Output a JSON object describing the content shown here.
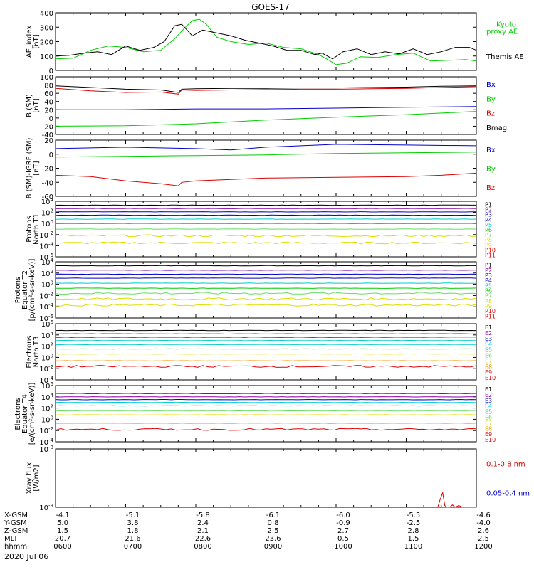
{
  "title": "GOES-17",
  "footer": {
    "rows": [
      {
        "label": "X-GSM",
        "values": [
          "-4.1",
          "-5.1",
          "-5.8",
          "-6.1",
          "-6.0",
          "-5.5",
          "-4.6"
        ]
      },
      {
        "label": "Y-GSM",
        "values": [
          "5.0",
          "3.8",
          "2.4",
          "0.8",
          "-0.9",
          "-2.5",
          "-4.0"
        ]
      },
      {
        "label": "Z-GSM",
        "values": [
          "1.5",
          "1.8",
          "2.1",
          "2.5",
          "2.7",
          "2.8",
          "2.6"
        ]
      },
      {
        "label": "MLT",
        "values": [
          "20.7",
          "21.6",
          "22.6",
          "23.6",
          "0.5",
          "1.5",
          "2.5"
        ]
      },
      {
        "label": "hhmm",
        "values": [
          "0600",
          "0700",
          "0800",
          "0900",
          "1000",
          "1100",
          "1200"
        ]
      }
    ],
    "date": "2020 Jul 06"
  },
  "colors": {
    "black": "#000000",
    "red": "#dd0000",
    "green": "#00cc00",
    "blue": "#0000cc",
    "purple": "#8800aa",
    "cyan": "#00cccc",
    "ltgreen": "#66dd66",
    "yellow": "#dddd00",
    "orange": "#ee9900"
  },
  "chart_data": [
    {
      "id": "ae",
      "type": "line",
      "ylabel": "AE_index\n[nT]",
      "ylim": [
        0,
        400
      ],
      "yticks": [
        0,
        100,
        200,
        300,
        400
      ],
      "ytick_labels": [
        "0",
        "100",
        "200",
        "300",
        "400"
      ],
      "x_hours": [
        6,
        12
      ],
      "legend": [
        {
          "text": "Kyoto\nproxy AE",
          "color": "#00cc00"
        },
        {
          "text": "Themis AE",
          "color": "#000000"
        }
      ],
      "series": [
        {
          "name": "Kyoto proxy AE",
          "color": "#00cc00",
          "x": [
            6.0,
            6.25,
            6.5,
            6.75,
            7.0,
            7.25,
            7.5,
            7.7,
            7.85,
            7.95,
            8.05,
            8.15,
            8.3,
            8.5,
            8.75,
            9.0,
            9.25,
            9.5,
            9.75,
            9.9,
            10.0,
            10.15,
            10.35,
            10.6,
            10.85,
            11.1,
            11.35,
            11.6,
            11.85,
            12.0
          ],
          "y": [
            80,
            85,
            140,
            170,
            160,
            130,
            140,
            220,
            300,
            345,
            355,
            320,
            230,
            200,
            180,
            190,
            160,
            150,
            110,
            70,
            40,
            50,
            95,
            90,
            110,
            120,
            65,
            70,
            75,
            65
          ]
        },
        {
          "name": "Themis AE",
          "color": "#000000",
          "x": [
            6.0,
            6.2,
            6.4,
            6.6,
            6.8,
            7.0,
            7.2,
            7.4,
            7.55,
            7.7,
            7.8,
            7.95,
            8.1,
            8.3,
            8.5,
            8.7,
            8.9,
            9.1,
            9.3,
            9.5,
            9.7,
            9.8,
            9.95,
            10.1,
            10.3,
            10.5,
            10.7,
            10.9,
            11.1,
            11.3,
            11.5,
            11.7,
            11.9,
            12.0
          ],
          "y": [
            100,
            105,
            120,
            130,
            110,
            170,
            140,
            160,
            200,
            310,
            320,
            240,
            280,
            260,
            240,
            210,
            190,
            170,
            140,
            140,
            110,
            120,
            80,
            130,
            150,
            110,
            130,
            115,
            150,
            110,
            130,
            160,
            160,
            140
          ]
        }
      ]
    },
    {
      "id": "bsm",
      "type": "line",
      "ylabel": "B (SM)\n[nT]",
      "ylim": [
        -40,
        100
      ],
      "yticks": [
        -40,
        -20,
        0,
        20,
        40,
        60,
        80,
        100
      ],
      "ytick_labels": [
        "-40",
        "-20",
        "0",
        "20",
        "40",
        "60",
        "80",
        "100"
      ],
      "x_hours": [
        6,
        12
      ],
      "legend": [
        {
          "text": "Bx",
          "color": "#0000cc"
        },
        {
          "text": "By",
          "color": "#00cc00"
        },
        {
          "text": "Bz",
          "color": "#dd0000"
        },
        {
          "text": "Bmag",
          "color": "#000000"
        }
      ],
      "series": [
        {
          "name": "Bmag",
          "color": "#000000",
          "x": [
            6,
            6.5,
            7,
            7.5,
            7.75,
            7.8,
            8,
            8.5,
            9,
            9.5,
            10,
            10.5,
            11,
            11.5,
            12
          ],
          "y": [
            78,
            74,
            70,
            68,
            62,
            70,
            71,
            72,
            72,
            73,
            73,
            74,
            75,
            77,
            78
          ]
        },
        {
          "name": "Bz",
          "color": "#dd0000",
          "x": [
            6,
            6.5,
            7,
            7.5,
            7.75,
            7.8,
            8,
            8.5,
            9,
            9.5,
            10,
            10.5,
            11,
            11.5,
            12
          ],
          "y": [
            72,
            66,
            62,
            63,
            58,
            68,
            67,
            68,
            69,
            70,
            70,
            71,
            72,
            74,
            76
          ]
        },
        {
          "name": "Bx",
          "color": "#0000cc",
          "x": [
            6,
            7,
            8,
            9,
            10,
            11,
            12
          ],
          "y": [
            20,
            20,
            22,
            22,
            24,
            26,
            28
          ]
        },
        {
          "name": "By",
          "color": "#00cc00",
          "x": [
            6,
            7,
            8,
            9,
            10,
            11,
            12
          ],
          "y": [
            -20,
            -19,
            -14,
            -5,
            2,
            8,
            16
          ]
        }
      ]
    },
    {
      "id": "bigrf",
      "type": "line",
      "ylabel": "B (SM)-IGRF (SM)\n[nT]",
      "ylim": [
        -60,
        20
      ],
      "yticks": [
        -60,
        -40,
        -20,
        0,
        20
      ],
      "ytick_labels": [
        "-60",
        "-40",
        "-20",
        "0",
        "20"
      ],
      "x_hours": [
        6,
        12
      ],
      "legend": [
        {
          "text": "Bx",
          "color": "#0000cc"
        },
        {
          "text": "By",
          "color": "#00cc00"
        },
        {
          "text": "Bz",
          "color": "#dd0000"
        }
      ],
      "series": [
        {
          "name": "Bx",
          "color": "#0000cc",
          "x": [
            6,
            7,
            8,
            8.5,
            9,
            10,
            11,
            12
          ],
          "y": [
            8,
            10,
            8,
            6,
            10,
            14,
            13,
            12
          ]
        },
        {
          "name": "By",
          "color": "#00cc00",
          "x": [
            6,
            7,
            8,
            9,
            10,
            11,
            12
          ],
          "y": [
            -4,
            -3,
            -2,
            -1,
            1,
            2,
            3
          ]
        },
        {
          "name": "Bz",
          "color": "#dd0000",
          "x": [
            6,
            6.5,
            7,
            7.5,
            7.75,
            7.8,
            8,
            8.5,
            9,
            10,
            11,
            11.5,
            12
          ],
          "y": [
            -30,
            -32,
            -38,
            -42,
            -45,
            -40,
            -38,
            -36,
            -34,
            -33,
            -32,
            -30,
            -27
          ]
        }
      ]
    },
    {
      "id": "pn",
      "type": "line",
      "log": true,
      "ylabel": "Protons\nNorth T1",
      "ylim": [
        -6,
        4
      ],
      "yticks": [
        4,
        2,
        0,
        -2,
        -4,
        -6
      ],
      "ytick_labels": [
        "10^4",
        "10^2",
        "10^0",
        "10^-2",
        "10^-4",
        "10^-6"
      ],
      "x_hours": [
        6,
        12
      ],
      "channels": [
        {
          "name": "P1",
          "color": "#000000",
          "level": 3.3
        },
        {
          "name": "P2",
          "color": "#8800aa",
          "level": 2.7
        },
        {
          "name": "P3",
          "color": "#0000cc",
          "level": 2.1
        },
        {
          "name": "P4",
          "color": "#0000cc",
          "level": 1.5
        },
        {
          "name": "P5",
          "color": "#00cccc",
          "level": 0.8
        },
        {
          "name": "P6",
          "color": "#00cc00",
          "level": 0.0
        },
        {
          "name": "P7",
          "color": "#66dd66",
          "level": -1.0
        },
        {
          "name": "P8",
          "color": "#dddd00",
          "level": -2.2
        },
        {
          "name": "P9",
          "color": "#dddd00",
          "level": -3.5
        },
        {
          "name": "P10",
          "color": "#dd0000",
          "level": null
        },
        {
          "name": "P11",
          "color": "#dd0000",
          "level": null
        }
      ]
    },
    {
      "id": "pe",
      "type": "line",
      "log": true,
      "ylabel": "Protons\nEquator T2\n[p/(cm²-s-sr-keV)]",
      "ylim": [
        -6,
        4
      ],
      "yticks": [
        4,
        2,
        0,
        -2,
        -4,
        -6
      ],
      "ytick_labels": [
        "10^4",
        "10^2",
        "10^0",
        "10^-2",
        "10^-4",
        "10^-6"
      ],
      "x_hours": [
        6,
        12
      ],
      "channels": [
        {
          "name": "P1",
          "color": "#000000",
          "level": 3.3
        },
        {
          "name": "P2",
          "color": "#8800aa",
          "level": 2.5
        },
        {
          "name": "P3",
          "color": "#0000cc",
          "level": 1.8
        },
        {
          "name": "P4",
          "color": "#0000cc",
          "level": 1.1
        },
        {
          "name": "P5",
          "color": "#00cccc",
          "level": 0.2
        },
        {
          "name": "P6",
          "color": "#00cc00",
          "level": -0.7
        },
        {
          "name": "P7",
          "color": "#66dd66",
          "level": -1.6
        },
        {
          "name": "P8",
          "color": "#dddd00",
          "level": -2.6
        },
        {
          "name": "P9",
          "color": "#dddd00",
          "level": -3.7
        },
        {
          "name": "P10",
          "color": "#dd0000",
          "level": null
        },
        {
          "name": "P11",
          "color": "#dd0000",
          "level": null
        }
      ]
    },
    {
      "id": "en",
      "type": "line",
      "log": true,
      "ylabel": "Electrons\nNorth T3",
      "ylim": [
        -4,
        6
      ],
      "yticks": [
        6,
        4,
        2,
        0,
        -2,
        -4
      ],
      "ytick_labels": [
        "10^6",
        "10^4",
        "10^2",
        "10^0",
        "10^-2",
        "10^-4"
      ],
      "x_hours": [
        6,
        12
      ],
      "channels": [
        {
          "name": "E1",
          "color": "#000000",
          "level": 4.8
        },
        {
          "name": "E2",
          "color": "#8800aa",
          "level": 4.2
        },
        {
          "name": "E3",
          "color": "#0000cc",
          "level": 3.6
        },
        {
          "name": "E4",
          "color": "#00cccc",
          "level": 3.0
        },
        {
          "name": "E5",
          "color": "#00cccc",
          "level": 2.3
        },
        {
          "name": "E6",
          "color": "#66dd66",
          "level": 1.5
        },
        {
          "name": "E7",
          "color": "#dddd00",
          "level": 0.6
        },
        {
          "name": "E8",
          "color": "#ee9900",
          "level": -0.6
        },
        {
          "name": "E9",
          "color": "#dd0000",
          "level": -1.6
        },
        {
          "name": "E10",
          "color": "#dd0000",
          "level": null
        }
      ]
    },
    {
      "id": "ee",
      "type": "line",
      "log": true,
      "ylabel": "Electrons\nEquator T4\n[e/(cm²-s-sr-keV)]",
      "ylim": [
        -4,
        6
      ],
      "yticks": [
        6,
        4,
        2,
        0,
        -2,
        -4
      ],
      "ytick_labels": [
        "10^6",
        "10^4",
        "10^2",
        "10^0",
        "10^-2",
        "10^-4"
      ],
      "x_hours": [
        6,
        12
      ],
      "channels": [
        {
          "name": "E1",
          "color": "#000000",
          "level": 4.6
        },
        {
          "name": "E2",
          "color": "#8800aa",
          "level": 4.0
        },
        {
          "name": "E3",
          "color": "#0000cc",
          "level": 3.5
        },
        {
          "name": "E4",
          "color": "#00cccc",
          "level": 3.0
        },
        {
          "name": "E5",
          "color": "#00cccc",
          "level": 2.4
        },
        {
          "name": "E6",
          "color": "#66dd66",
          "level": 1.6
        },
        {
          "name": "E7",
          "color": "#dddd00",
          "level": 0.8
        },
        {
          "name": "E8",
          "color": "#ee9900",
          "level": -0.7
        },
        {
          "name": "E9",
          "color": "#dd0000",
          "level": -1.8
        },
        {
          "name": "E10",
          "color": "#dd0000",
          "level": null
        }
      ]
    },
    {
      "id": "xray",
      "type": "line",
      "log": true,
      "ylabel": "Xray flux\n[W/m2]",
      "ylim": [
        -9,
        -8
      ],
      "yticks": [
        -8,
        -9
      ],
      "ytick_labels": [
        "10^-8",
        "10^-9"
      ],
      "x_hours": [
        6,
        12
      ],
      "legend": [
        {
          "text": "0.1-0.8 nm",
          "color": "#dd0000"
        },
        {
          "text": "0.05-0.4 nm",
          "color": "#0000cc"
        }
      ],
      "series": [
        {
          "name": "0.1-0.8 nm",
          "color": "#dd0000",
          "x": [
            11.45,
            11.48,
            11.52,
            11.55,
            11.58,
            11.62,
            11.66,
            11.7,
            11.75,
            11.8,
            11.9,
            12.0
          ],
          "y": [
            -9.0,
            -8.88,
            -8.75,
            -8.97,
            -9.0,
            -9.0,
            -8.96,
            -9.0,
            -8.97,
            -9.0,
            -9.0,
            -9.0
          ]
        }
      ]
    }
  ]
}
